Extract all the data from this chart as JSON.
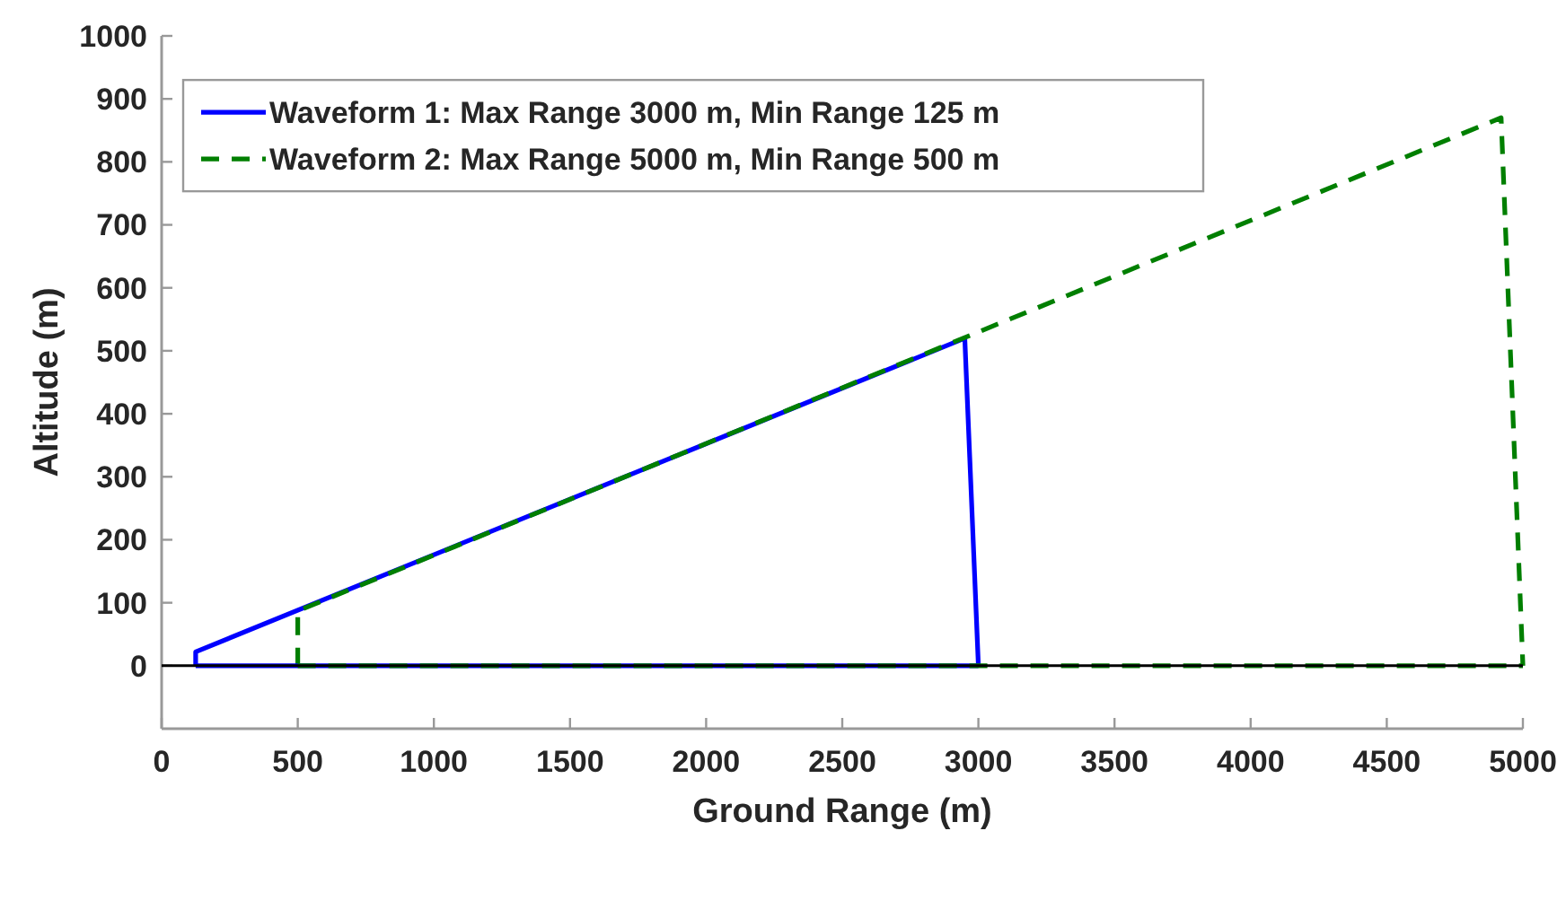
{
  "chart_data": {
    "type": "line",
    "xlabel": "Ground Range (m)",
    "ylabel": "Altitude (m)",
    "xlim": [
      0,
      5000
    ],
    "xticks": [
      0,
      500,
      1000,
      1500,
      2000,
      2500,
      3000,
      3500,
      4000,
      4500,
      5000
    ],
    "ylim": [
      -100,
      1000
    ],
    "yticks": [
      0,
      100,
      200,
      300,
      400,
      500,
      600,
      700,
      800,
      900,
      1000
    ],
    "grid": false,
    "legend": "top left",
    "marker": "none",
    "ref_lines": [
      {
        "axis": "y",
        "value": 0,
        "color": "#000000",
        "line_style": "solid"
      }
    ],
    "series": [
      {
        "name": "Waveform 1: Max Range 3000 m, Min Range 125 m",
        "color": "#0000ff",
        "line_style": "solid",
        "x": [
          125,
          125,
          2950,
          3000
        ],
        "values": [
          0,
          22,
          520,
          0
        ]
      },
      {
        "name": "Waveform 2: Max Range 5000 m, Min Range 500 m",
        "color": "#007f00",
        "line_style": "dashed",
        "x": [
          500,
          500,
          4920,
          5000
        ],
        "values": [
          0,
          87,
          870,
          0
        ]
      },
      {
        "color": "#0000ff",
        "line_style": "solid",
        "x": [
          125,
          3000
        ],
        "values": [
          0,
          0
        ]
      },
      {
        "color": "#007f00",
        "line_style": "dashed",
        "x": [
          500,
          5000
        ],
        "values": [
          0,
          0
        ]
      }
    ]
  }
}
